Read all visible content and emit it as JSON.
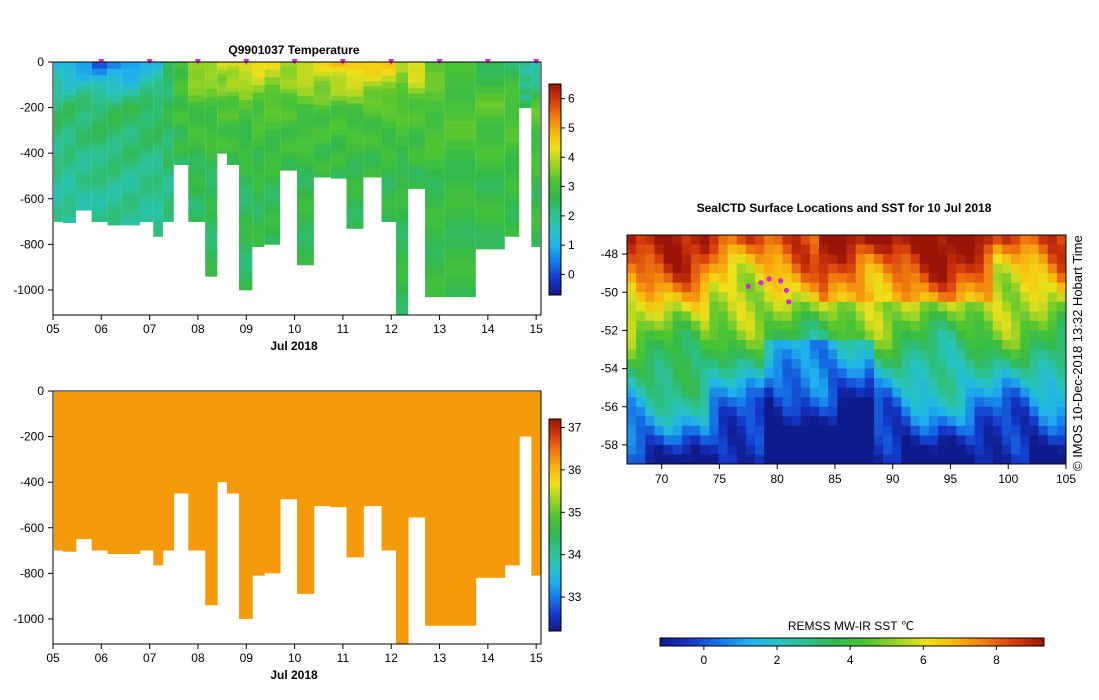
{
  "colors": {
    "salinity_fill": "#f49a0b",
    "marker": "#d22ad6",
    "scale": [
      "#0f1b8c",
      "#1437c7",
      "#1674e6",
      "#1fb0ee",
      "#28c3c0",
      "#2cc08a",
      "#33b84a",
      "#4cc433",
      "#9ad326",
      "#eee019",
      "#f7b60f",
      "#f17a10",
      "#d53b0c",
      "#9a1508"
    ]
  },
  "chart_data": [
    {
      "type": "heatmap",
      "id": "temperature_section",
      "title": "Q9901037  Temperature",
      "xlabel": "Jul 2018",
      "ylabel": "",
      "x_tick_labels": [
        "05",
        "06",
        "07",
        "08",
        "09",
        "10",
        "11",
        "12",
        "13",
        "14",
        "15"
      ],
      "y_tick_labels": [
        "0",
        "-200",
        "-400",
        "-600",
        "-800",
        "-1000"
      ],
      "y_ticks": [
        0,
        -200,
        -400,
        -600,
        -800,
        -1000
      ],
      "xlim": [
        5,
        15.1
      ],
      "ylim": [
        -1110,
        0
      ],
      "colorbar": {
        "min": -0.7,
        "max": 6.5,
        "tick_labels": [
          "0",
          "1",
          "2",
          "3",
          "4",
          "5",
          "6"
        ],
        "ticks": [
          0,
          1,
          2,
          3,
          4,
          5,
          6
        ]
      },
      "profile_times": [
        5.05,
        5.35,
        5.6,
        6.0,
        6.25,
        6.6,
        7.0,
        7.15,
        7.4,
        7.6,
        8.0,
        8.3,
        8.5,
        8.7,
        9.0,
        9.25,
        9.5,
        9.9,
        10.2,
        10.6,
        10.9,
        11.25,
        11.6,
        12.0,
        12.2,
        12.5,
        12.9,
        13.3,
        14.2,
        14.5,
        14.8,
        15.0
      ],
      "profile_depths": [
        700,
        705,
        650,
        700,
        715,
        715,
        700,
        765,
        700,
        450,
        700,
        940,
        400,
        450,
        1000,
        810,
        800,
        475,
        890,
        505,
        510,
        730,
        505,
        700,
        1110,
        555,
        1030,
        1030,
        820,
        765,
        200,
        810
      ],
      "surface_temps": [
        1.0,
        0.8,
        0.8,
        0.2,
        0.3,
        0.5,
        1.2,
        1.2,
        2.2,
        3.0,
        4.0,
        3.8,
        4.0,
        4.2,
        4.5,
        4.4,
        4.2,
        4.0,
        4.3,
        4.3,
        4.7,
        4.9,
        4.6,
        4.5,
        4.0,
        4.5,
        3.2,
        2.8,
        2.6,
        2.4,
        1.8,
        1.4
      ],
      "deep_temps": [
        1.9,
        1.9,
        1.9,
        2.0,
        2.0,
        2.0,
        2.0,
        2.0,
        2.1,
        2.4,
        2.5,
        2.5,
        2.6,
        2.6,
        2.5,
        2.6,
        2.6,
        2.6,
        2.6,
        2.6,
        2.6,
        2.6,
        2.6,
        2.6,
        2.6,
        2.6,
        2.7,
        2.7,
        2.7,
        2.7,
        1.9,
        2.7
      ],
      "location_marker_days": [
        6.0,
        7.0,
        8.0,
        9.0,
        10.0,
        11.0,
        12.0,
        13.0,
        14.0,
        15.0
      ]
    },
    {
      "type": "heatmap",
      "id": "salinity_section",
      "title": "",
      "xlabel": "Jul 2018",
      "ylabel": "",
      "x_tick_labels": [
        "05",
        "06",
        "07",
        "08",
        "09",
        "10",
        "11",
        "12",
        "13",
        "14",
        "15"
      ],
      "y_tick_labels": [
        "0",
        "-200",
        "-400",
        "-600",
        "-800",
        "-1000"
      ],
      "y_ticks": [
        0,
        -200,
        -400,
        -600,
        -800,
        -1000
      ],
      "xlim": [
        5,
        15.1
      ],
      "ylim": [
        -1110,
        0
      ],
      "colorbar": {
        "min": 32.2,
        "max": 37.2,
        "tick_labels": [
          "33",
          "34",
          "35",
          "36",
          "37"
        ],
        "ticks": [
          33,
          34,
          35,
          36,
          37
        ]
      },
      "value_all_profiles": 35.8
    },
    {
      "type": "heatmap",
      "id": "sst_map",
      "title": "SealCTD Surface Locations and SST for 10 Jul 2018",
      "xlabel": "",
      "ylabel": "",
      "x_tick_labels": [
        "70",
        "75",
        "80",
        "85",
        "90",
        "95",
        "100",
        "105"
      ],
      "x_ticks": [
        70,
        75,
        80,
        85,
        90,
        95,
        100,
        105
      ],
      "y_tick_labels": [
        "-48",
        "-50",
        "-52",
        "-54",
        "-56",
        "-58"
      ],
      "y_ticks": [
        -48,
        -50,
        -52,
        -54,
        -56,
        -58
      ],
      "xlim": [
        67,
        105
      ],
      "ylim": [
        -59,
        -47
      ],
      "colorbar": {
        "label": "REMSS MW-IR SST ℃",
        "min": -1.2,
        "max": 9.3,
        "tick_labels": [
          "0",
          "2",
          "4",
          "6",
          "8"
        ],
        "ticks": [
          0,
          2,
          4,
          6,
          8
        ]
      },
      "surface_locations": [
        [
          77.5,
          -49.7
        ],
        [
          78.6,
          -49.5
        ],
        [
          79.3,
          -49.3
        ],
        [
          80.3,
          -49.4
        ],
        [
          80.8,
          -49.9
        ],
        [
          81.0,
          -50.5
        ]
      ],
      "credit": "© IMOS 10-Dec-2018 13:32 Hobart Time"
    }
  ]
}
